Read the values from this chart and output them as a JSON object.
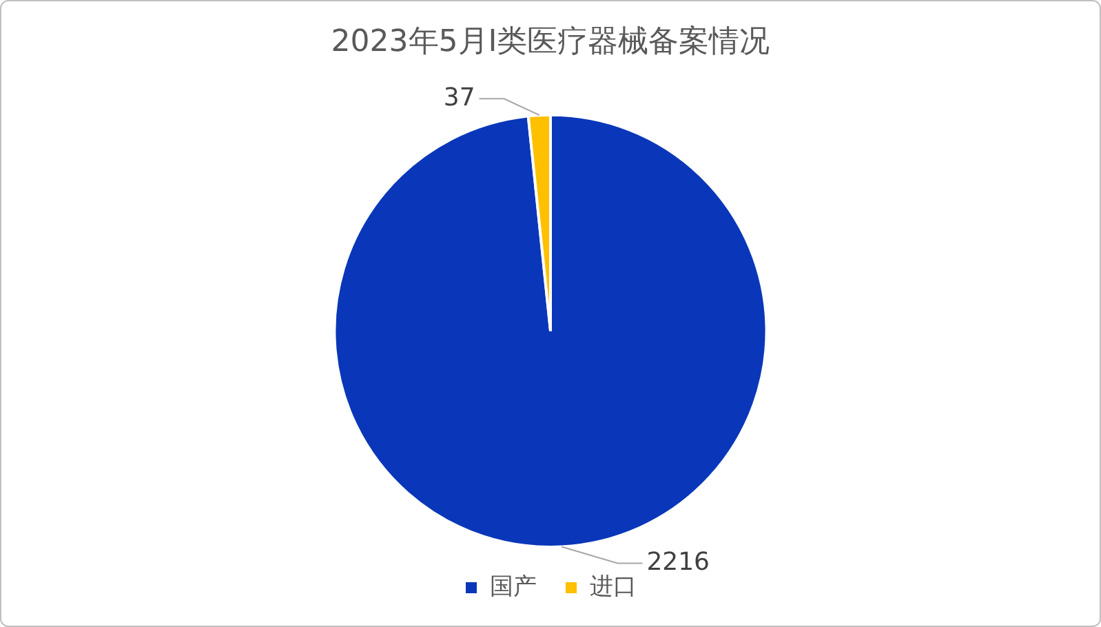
{
  "chart_data": {
    "type": "pie",
    "title": "2023年5月Ⅰ类医疗器械备案情况",
    "categories": [
      "国产",
      "进口"
    ],
    "values": [
      2216,
      37
    ],
    "colors": [
      "#0a37b9",
      "#ffc000"
    ],
    "data_labels": true,
    "legend": "bottom"
  }
}
